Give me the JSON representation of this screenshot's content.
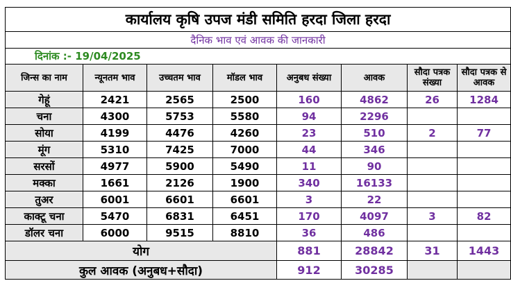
{
  "header": {
    "title": "कार्यालय कृषि उपज मंडी समिति हरदा जिला हरदा",
    "subtitle": "दैनिक भाव एवं आवक की जानकारी",
    "date_label": "दिनांक :- 19/04/2025"
  },
  "columns": [
    "जिन्स का नाम",
    "न्यूनतम भाव",
    "उच्चतम भाव",
    "मॉडल भाव",
    "अनुबध संख्या",
    "आवक",
    "सौदा पत्रक संख्या",
    "सौदा पत्रक से आवक"
  ],
  "rows": [
    {
      "name": "गेहूं",
      "min": "2421",
      "max": "2565",
      "model": "2500",
      "anubadh": "160",
      "aavak": "4862",
      "sauda_count": "26",
      "sauda_aavak": "1284"
    },
    {
      "name": "चना",
      "min": "4300",
      "max": "5753",
      "model": "5580",
      "anubadh": "94",
      "aavak": "2296",
      "sauda_count": "",
      "sauda_aavak": ""
    },
    {
      "name": "सोया",
      "min": "4199",
      "max": "4476",
      "model": "4260",
      "anubadh": "23",
      "aavak": "510",
      "sauda_count": "2",
      "sauda_aavak": "77"
    },
    {
      "name": "मूंग",
      "min": "5310",
      "max": "7425",
      "model": "7000",
      "anubadh": "44",
      "aavak": "346",
      "sauda_count": "",
      "sauda_aavak": ""
    },
    {
      "name": "सरसों",
      "min": "4977",
      "max": "5900",
      "model": "5490",
      "anubadh": "11",
      "aavak": "90",
      "sauda_count": "",
      "sauda_aavak": ""
    },
    {
      "name": "मक्का",
      "min": "1661",
      "max": "2126",
      "model": "1900",
      "anubadh": "340",
      "aavak": "16133",
      "sauda_count": "",
      "sauda_aavak": ""
    },
    {
      "name": "तुअर",
      "min": "6001",
      "max": "6601",
      "model": "6601",
      "anubadh": "3",
      "aavak": "22",
      "sauda_count": "",
      "sauda_aavak": ""
    },
    {
      "name": "काक्टू चना",
      "min": "5470",
      "max": "6831",
      "model": "6451",
      "anubadh": "170",
      "aavak": "4097",
      "sauda_count": "3",
      "sauda_aavak": "82"
    },
    {
      "name": "डॉलर चना",
      "min": "6000",
      "max": "9515",
      "model": "8810",
      "anubadh": "36",
      "aavak": "486",
      "sauda_count": "",
      "sauda_aavak": ""
    }
  ],
  "yog": {
    "label": "योग",
    "anubadh": "881",
    "aavak": "28842",
    "sauda_count": "31",
    "sauda_aavak": "1443"
  },
  "total": {
    "label": "कुल आवक (अनुबध+सौदा)",
    "anubadh": "912",
    "aavak": "30285"
  },
  "colors": {
    "purple": "#7030a0",
    "green": "#2e8b22",
    "grey": "#e8e8e8"
  }
}
